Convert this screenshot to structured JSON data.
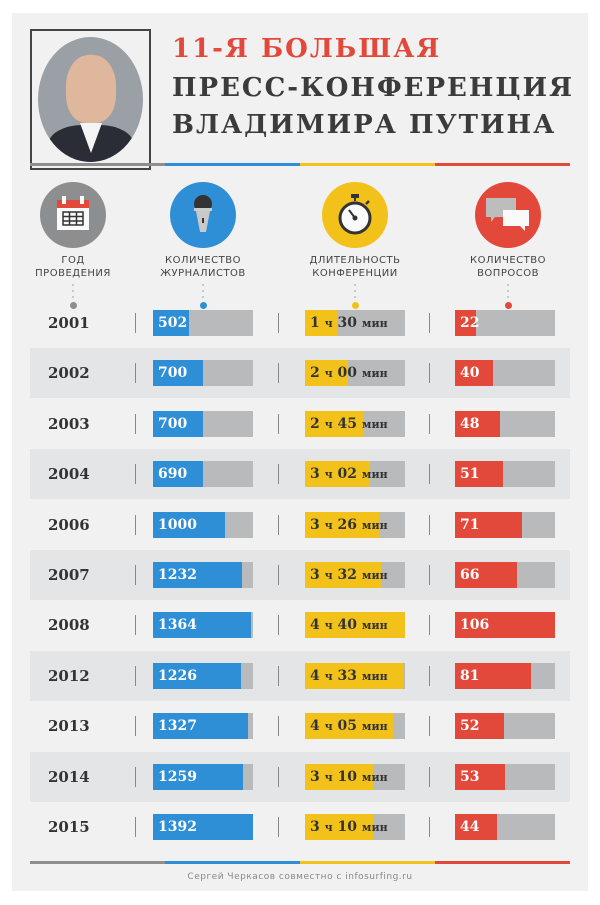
{
  "header": {
    "title_line1": "11-Я БОЛЬШАЯ",
    "title_line2": "ПРЕСС-КОНФЕРЕНЦИЯ",
    "title_line3": "ВЛАДИМИРА ПУТИНА",
    "portrait": "Vladimir Putin portrait"
  },
  "colors": {
    "gray": "#8d8e90",
    "blue": "#2f8fd6",
    "yellow": "#f2c21b",
    "red": "#e2493a",
    "track": "#b9babc"
  },
  "columns": [
    {
      "label_line1": "ГОД",
      "label_line2": "ПРОВЕДЕНИЯ",
      "icon": "calendar-icon",
      "color": "#8d8e90"
    },
    {
      "label_line1": "КОЛИЧЕСТВО",
      "label_line2": "ЖУРНАЛИСТОВ",
      "icon": "microphone-icon",
      "color": "#2f8fd6"
    },
    {
      "label_line1": "ДЛИТЕЛЬНОСТЬ",
      "label_line2": "КОНФЕРЕНЦИИ",
      "icon": "stopwatch-icon",
      "color": "#f2c21b"
    },
    {
      "label_line1": "КОЛИЧЕСТВО",
      "label_line2": "ВОПРОСОВ",
      "icon": "speech-bubbles-icon",
      "color": "#e2493a"
    }
  ],
  "unit_hours": "ч",
  "unit_minutes": "мин",
  "chart_data": {
    "type": "table",
    "title": "11-я большая пресс-конференция Владимира Путина",
    "columns": [
      "Год проведения",
      "Количество журналистов",
      "Длительность конференции",
      "Количество вопросов"
    ],
    "rows": [
      {
        "year": "2001",
        "journalists": 502,
        "hours": 1,
        "minutes": "30",
        "questions": 22
      },
      {
        "year": "2002",
        "journalists": 700,
        "hours": 2,
        "minutes": "00",
        "questions": 40
      },
      {
        "year": "2003",
        "journalists": 700,
        "hours": 2,
        "minutes": "45",
        "questions": 48
      },
      {
        "year": "2004",
        "journalists": 690,
        "hours": 3,
        "minutes": "02",
        "questions": 51
      },
      {
        "year": "2006",
        "journalists": 1000,
        "hours": 3,
        "minutes": "26",
        "questions": 71
      },
      {
        "year": "2007",
        "journalists": 1232,
        "hours": 3,
        "minutes": "32",
        "questions": 66
      },
      {
        "year": "2008",
        "journalists": 1364,
        "hours": 4,
        "minutes": "40",
        "questions": 106
      },
      {
        "year": "2012",
        "journalists": 1226,
        "hours": 4,
        "minutes": "33",
        "questions": 81
      },
      {
        "year": "2013",
        "journalists": 1327,
        "hours": 4,
        "minutes": "05",
        "questions": 52
      },
      {
        "year": "2014",
        "journalists": 1259,
        "hours": 3,
        "minutes": "10",
        "questions": 53
      },
      {
        "year": "2015",
        "journalists": 1392,
        "hours": 3,
        "minutes": "10",
        "questions": 44
      }
    ],
    "bar_max": {
      "journalists": 1392,
      "duration_minutes": 280,
      "questions": 106
    }
  },
  "footer": {
    "credit": "Сергей Черкасов совместно с infosurfing.ru"
  }
}
